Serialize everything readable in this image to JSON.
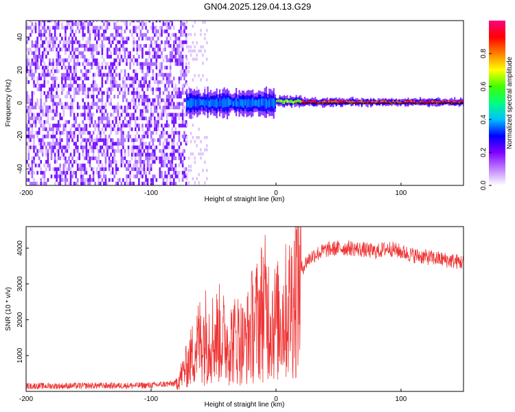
{
  "figure": {
    "title": "GN04.2025.129.04.13.G29"
  },
  "colors": {
    "signal_line": "#ee3333",
    "zero_line": "#000000",
    "colorbar": [
      "#ffffff",
      "#c080ff",
      "#8000ff",
      "#0000ff",
      "#00c0ff",
      "#00ff80",
      "#40ff00",
      "#ffff00",
      "#ff8000",
      "#ff0000",
      "#ff0080"
    ]
  },
  "chart_data": [
    {
      "type": "heatmap",
      "xlabel": "Height of straight line (km)",
      "ylabel": "Frequency (Hz)",
      "xlim": [
        -200,
        150
      ],
      "ylim": [
        -50,
        50
      ],
      "x_ticks": [
        -200,
        -100,
        0,
        100
      ],
      "y_ticks": [
        -40,
        -20,
        0,
        20,
        40
      ],
      "colorbar": {
        "label": "Normalized spectral amplitude",
        "range": [
          0,
          1
        ],
        "ticks": [
          "0.0",
          "0.2",
          "0.4",
          "0.6",
          "0.8"
        ]
      },
      "regions": [
        {
          "x_range": [
            -200,
            -72
          ],
          "freq_range": [
            -50,
            50
          ],
          "amplitude": 0.15,
          "description_visible": false
        },
        {
          "x_range": [
            -72,
            -55
          ],
          "freq_range": [
            -50,
            50
          ],
          "amplitude": 0.05
        },
        {
          "x_range": [
            -72,
            0
          ],
          "freq_center": 0,
          "freq_halfwidth": 5,
          "amplitude": 0.4
        },
        {
          "x_range": [
            0,
            20
          ],
          "freq_center": 1,
          "freq_halfwidth": 2,
          "amplitude": 0.7
        },
        {
          "x_range": [
            20,
            150
          ],
          "freq_center": 0.5,
          "freq_halfwidth": 1.5,
          "amplitude": 0.95
        }
      ],
      "zero_line_y": 0
    },
    {
      "type": "line",
      "xlabel": "Height of straight line (km)",
      "ylabel": "SNR (10 * v/v)",
      "xlim": [
        -200,
        150
      ],
      "ylim": [
        0,
        4600
      ],
      "x_ticks": [
        -200,
        -100,
        0,
        100
      ],
      "y_ticks": [
        1000,
        2000,
        3000,
        4000
      ],
      "series": [
        {
          "x": [
            -200,
            -175,
            -150,
            -125,
            -100,
            -90,
            -80,
            -75,
            -70,
            -65,
            -60,
            -55,
            -50,
            -45,
            -40,
            -35,
            -30,
            -25,
            -20,
            -15,
            -10,
            -5,
            0,
            5,
            10,
            15,
            20,
            25,
            30,
            40,
            50,
            60,
            70,
            80,
            90,
            100,
            110,
            120,
            130,
            140,
            150
          ],
          "values": [
            150,
            150,
            160,
            160,
            170,
            200,
            220,
            500,
            800,
            1200,
            1500,
            1600,
            1500,
            1600,
            1400,
            1400,
            1500,
            1300,
            1800,
            2000,
            2400,
            2100,
            1900,
            2100,
            2300,
            2800,
            3400,
            3650,
            3800,
            3950,
            4000,
            4000,
            3950,
            3900,
            4000,
            3900,
            3800,
            3750,
            3700,
            3650,
            3600
          ]
        }
      ]
    }
  ]
}
